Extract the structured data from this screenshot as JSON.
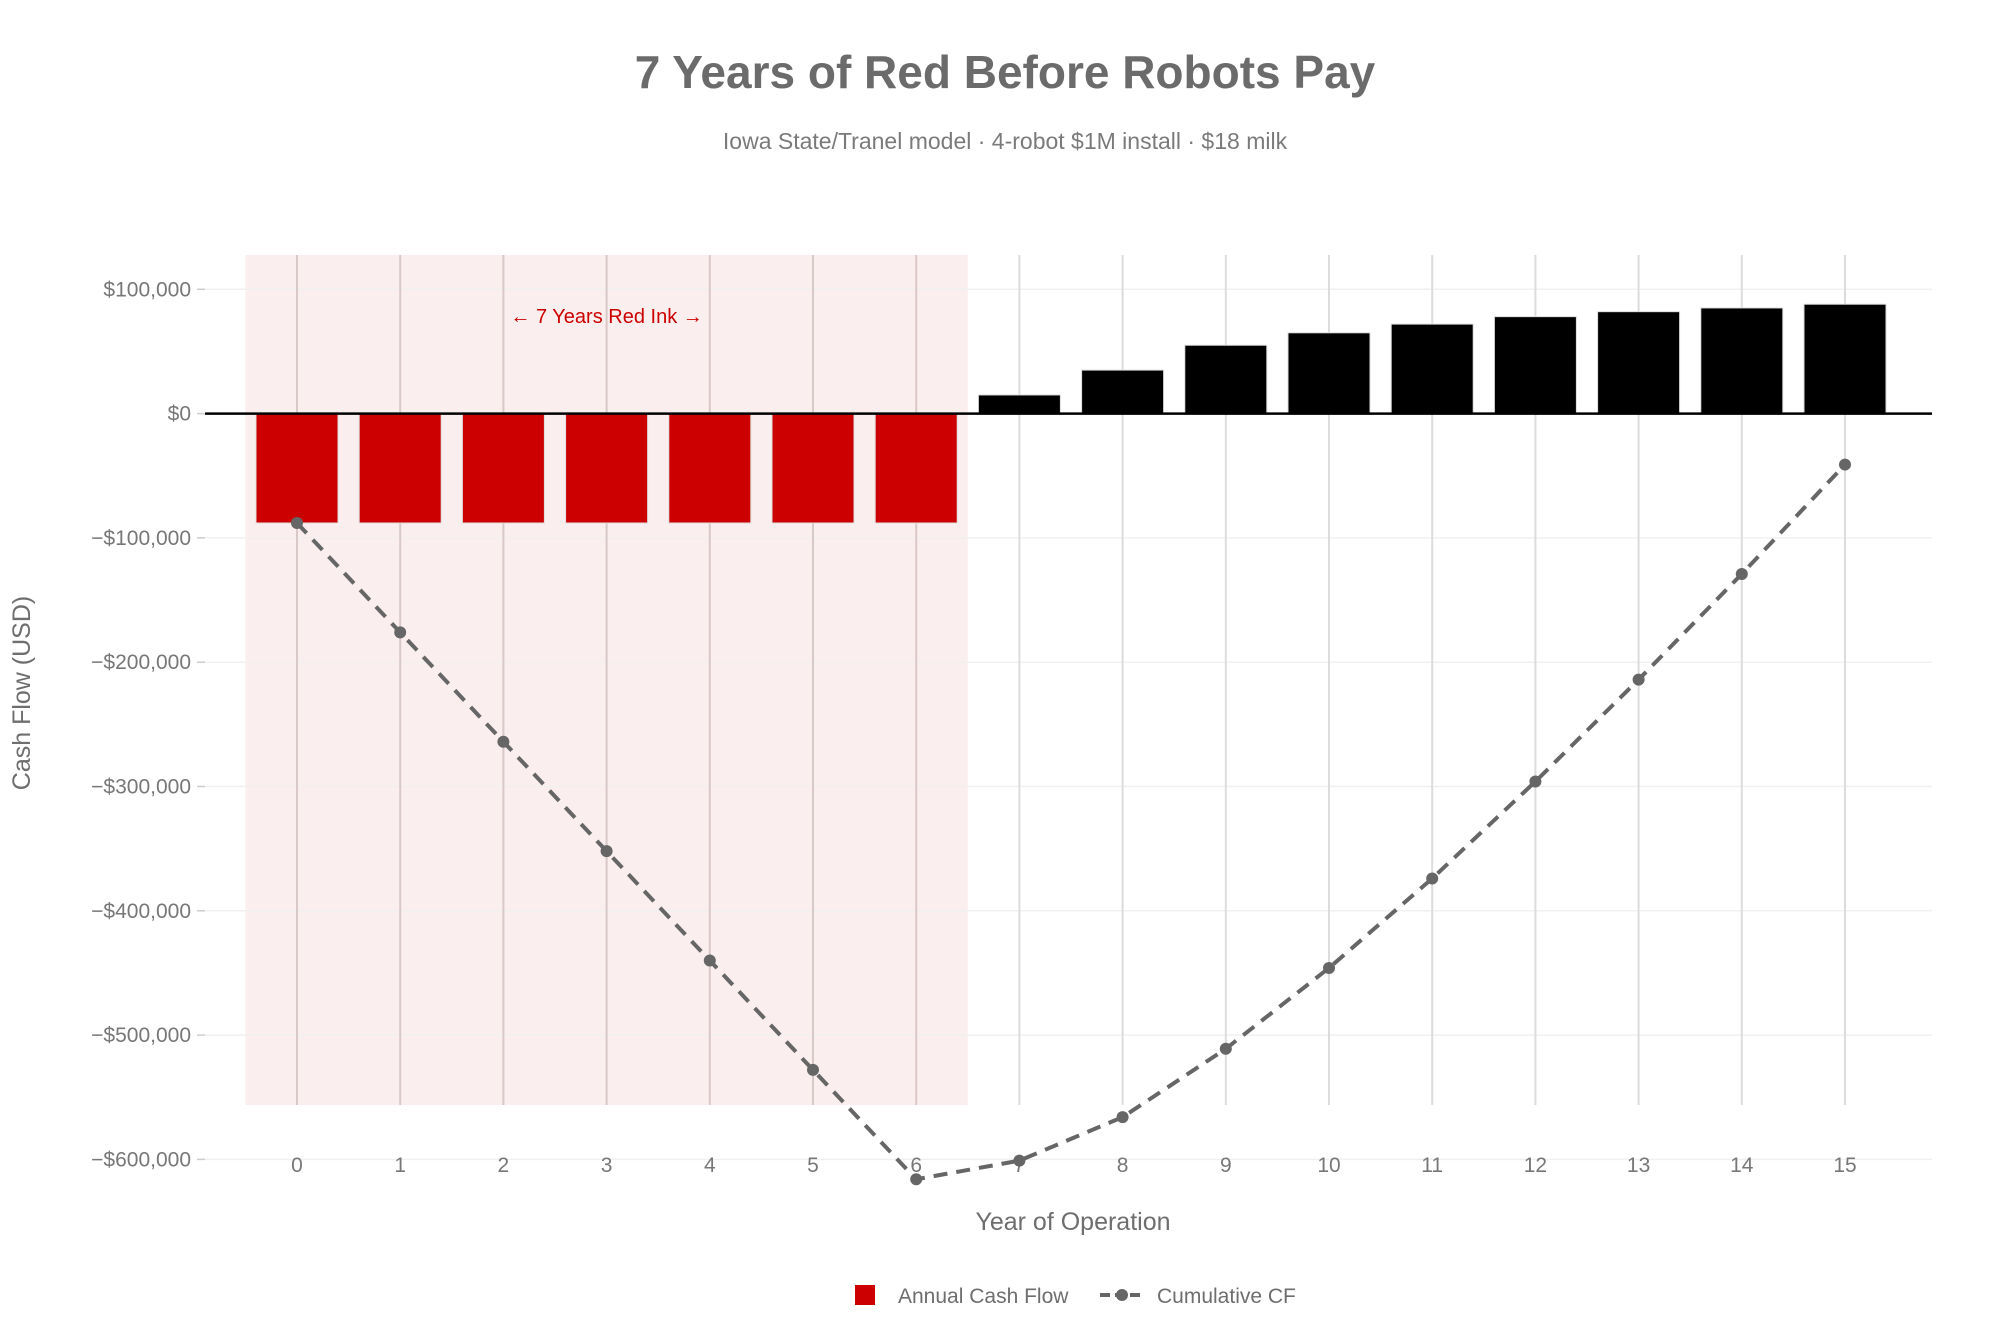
{
  "chart_data": {
    "type": "bar+line",
    "title": "7 Years of Red Before Robots Pay",
    "subtitle": "Iowa State/Tranel model · 4-robot $1M install · $18 milk",
    "xlabel": "Year of Operation",
    "ylabel": "Cash Flow (USD)",
    "x": [
      0,
      1,
      2,
      3,
      4,
      5,
      6,
      7,
      8,
      9,
      10,
      11,
      12,
      13,
      14,
      15
    ],
    "x_tick_labels": [
      "0",
      "1",
      "2",
      "3",
      "4",
      "5",
      "6",
      "7",
      "8",
      "9",
      "10",
      "11",
      "12",
      "13",
      "14",
      "15"
    ],
    "ylim": [
      -660000,
      128000
    ],
    "y_ticks": [
      100000,
      0,
      -100000,
      -200000,
      -300000,
      -400000,
      -500000,
      -600000
    ],
    "y_tick_labels": [
      "$100,000",
      "$0",
      "−$100,000",
      "−$200,000",
      "−$300,000",
      "−$400,000",
      "−$500,000",
      "−$600,000"
    ],
    "grid": true,
    "series": [
      {
        "name": "Annual Cash Flow",
        "type": "bar",
        "values": [
          -88000,
          -88000,
          -88000,
          -88000,
          -88000,
          -88000,
          -88000,
          15000,
          35000,
          55000,
          65000,
          72000,
          78000,
          82000,
          85000,
          88000
        ],
        "color_negative": "#cc0000",
        "color_positive": "#000000"
      },
      {
        "name": "Cumulative CF",
        "type": "line",
        "style": "dashed-markers",
        "values": [
          -88000,
          -176000,
          -264000,
          -352000,
          -440000,
          -528000,
          -616000,
          -601000,
          -566000,
          -511000,
          -446000,
          -374000,
          -296000,
          -214000,
          -129000,
          -41000
        ],
        "color": "#666666"
      }
    ],
    "shaded_region": {
      "x_from": -0.5,
      "x_to": 6.5,
      "color": "#fbeeee",
      "label": "← 7 Years Red Ink →",
      "label_color": "#cc0000"
    },
    "legend": {
      "placement": "bottom",
      "entries": [
        "Annual Cash Flow",
        "Cumulative CF"
      ]
    }
  }
}
